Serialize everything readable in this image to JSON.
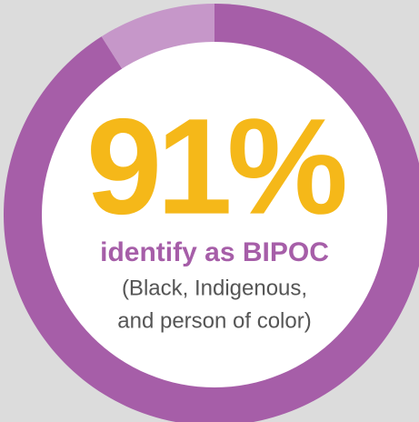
{
  "chart_data": {
    "type": "donut",
    "values": [
      91,
      9
    ],
    "value_labels": [
      "91%",
      null
    ],
    "colors": [
      "#a65ea8",
      "#c697c9"
    ],
    "title": "identify as BIPOC",
    "subtitle": [
      "(Black, Indigenous,",
      "and person of color)"
    ]
  }
}
